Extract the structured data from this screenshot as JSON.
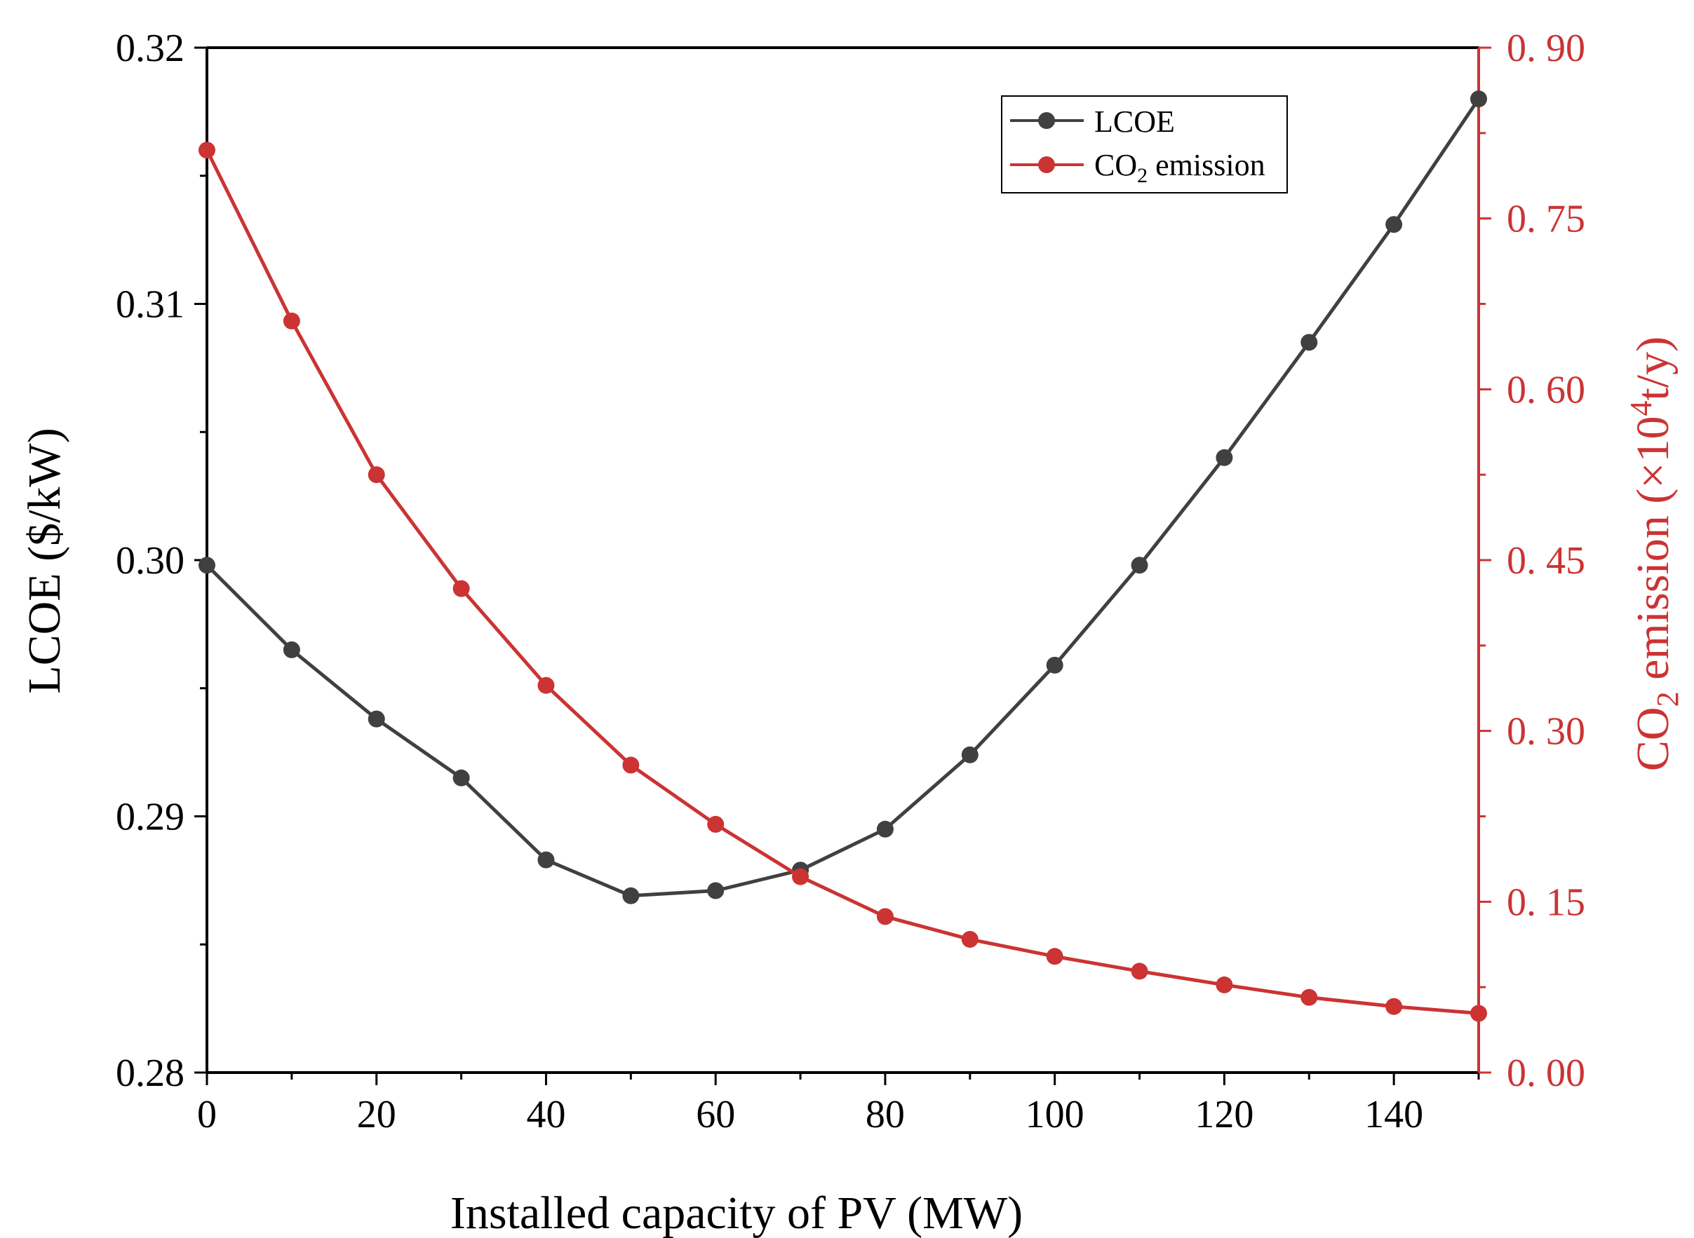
{
  "colors": {
    "lcoe": "#404040",
    "co2": "#cc3333",
    "axis": "#000000",
    "right_axis": "#cc3333"
  },
  "chart_data": {
    "type": "line",
    "title": "",
    "xlabel": "Installed capacity of PV (MW)",
    "ylabel": "LCOE ($/kW)",
    "ylabel_right": {
      "prefix": "CO",
      "sub": "2",
      "mid": " emission (×10",
      "sup": "4",
      "suffix": "t/y)"
    },
    "xlim": [
      0,
      150
    ],
    "ylim": [
      0.28,
      0.32
    ],
    "ylim_right": [
      0.0,
      0.9
    ],
    "x_ticks": [
      0,
      20,
      40,
      60,
      80,
      100,
      120,
      140
    ],
    "x_tick_labels": [
      "0",
      "20",
      "40",
      "60",
      "80",
      "100",
      "120",
      "140"
    ],
    "y_ticks": [
      0.28,
      0.29,
      0.3,
      0.31,
      0.32
    ],
    "y_tick_labels": [
      "0.28",
      "0.29",
      "0.30",
      "0.31",
      "0.32"
    ],
    "y_right_ticks": [
      0.0,
      0.15,
      0.3,
      0.45,
      0.6,
      0.75,
      0.9
    ],
    "y_right_tick_labels": [
      "0. 00",
      "0. 15",
      "0. 30",
      "0. 45",
      "0. 60",
      "0. 75",
      "0. 90"
    ],
    "x": [
      0,
      10,
      20,
      30,
      40,
      50,
      60,
      70,
      80,
      90,
      100,
      110,
      120,
      130,
      140,
      150
    ],
    "series": [
      {
        "name": "LCOE",
        "axis": "left",
        "values": [
          0.2998,
          0.2965,
          0.2938,
          0.2915,
          0.2883,
          0.2869,
          0.2871,
          0.2879,
          0.2895,
          0.2924,
          0.2959,
          0.2998,
          0.304,
          0.3085,
          0.3131,
          0.318
        ]
      },
      {
        "name": "CO2 emission",
        "axis": "right",
        "values": [
          0.81,
          0.66,
          0.525,
          0.425,
          0.34,
          0.27,
          0.218,
          0.172,
          0.137,
          0.117,
          0.102,
          0.089,
          0.077,
          0.066,
          0.058,
          0.052
        ]
      }
    ],
    "legend": {
      "position": "top-right",
      "entries": [
        {
          "label": "LCOE"
        },
        {
          "label_main": "CO",
          "label_sub": "2",
          "label_rest": " emission"
        }
      ]
    }
  }
}
